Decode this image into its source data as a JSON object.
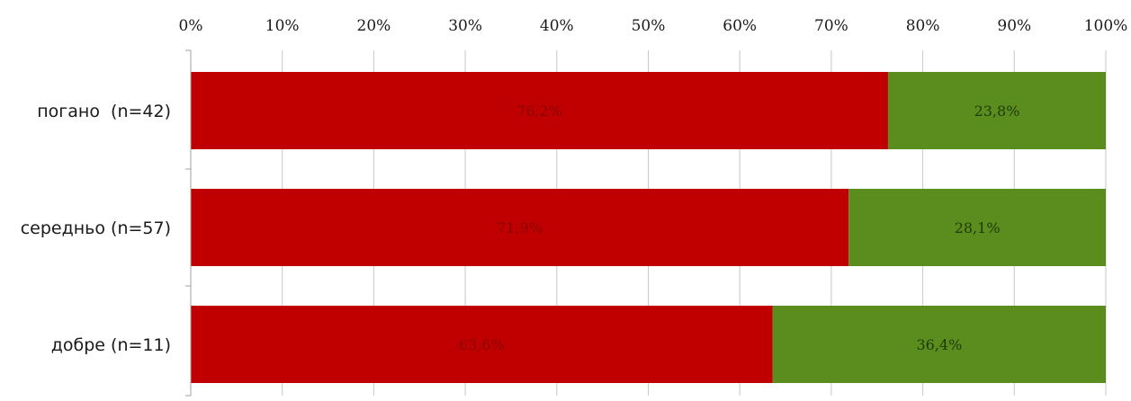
{
  "chart_data": {
    "type": "bar",
    "orientation": "horizontal",
    "stacked": true,
    "normalized": true,
    "title": "",
    "xlabel": "",
    "ylabel": "",
    "xlim": [
      0,
      100
    ],
    "x_ticks": [
      "0%",
      "10%",
      "20%",
      "30%",
      "40%",
      "50%",
      "60%",
      "70%",
      "80%",
      "90%",
      "100%"
    ],
    "x_axis_position": "top",
    "grid": true,
    "legend": "none",
    "categories": [
      "погано  (n=42)",
      "середньо (n=57)",
      "добре (n=11)"
    ],
    "series": [
      {
        "color": "#c00000",
        "label_color": "#8a0000",
        "values": [
          76.2,
          71.9,
          63.6
        ],
        "labels": [
          "76,2%",
          "71,9%",
          "63,6%"
        ]
      },
      {
        "color": "#5b8c1e",
        "label_color": "#1f3a08",
        "values": [
          23.8,
          28.1,
          36.4
        ],
        "labels": [
          "23,8%",
          "28,1%",
          "36,4%"
        ]
      }
    ]
  }
}
